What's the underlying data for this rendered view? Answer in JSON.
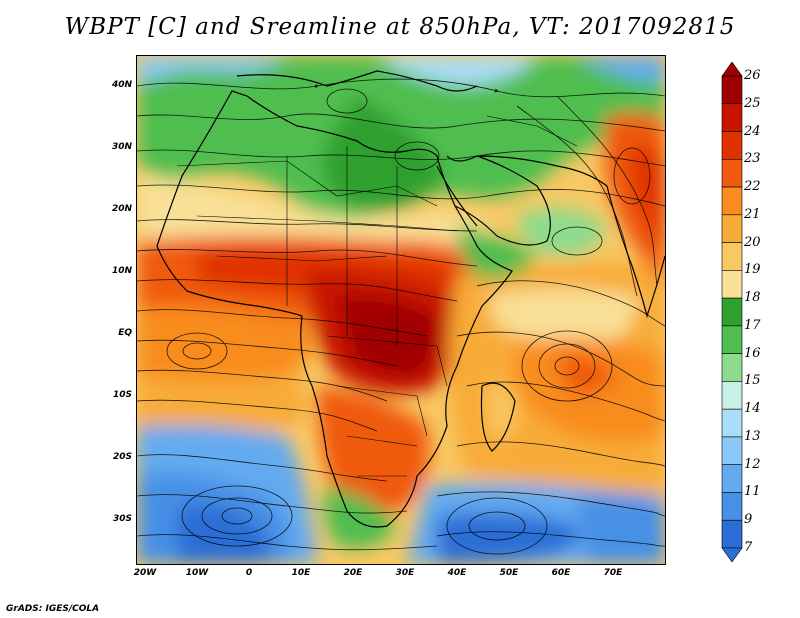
{
  "title": "WBPT [C] and Sreamline at 850hPa, VT: 2017092815",
  "credit": "GrADS: IGES/COLA",
  "lat_labels": [
    "40N",
    "30N",
    "20N",
    "10N",
    "EQ",
    "10S",
    "20S",
    "30S"
  ],
  "lon_labels": [
    "20W",
    "10W",
    "0",
    "10E",
    "20E",
    "30E",
    "40E",
    "50E",
    "60E",
    "70E"
  ],
  "colorbar": {
    "labels": [
      "26",
      "25",
      "24",
      "23",
      "22",
      "21",
      "20",
      "19",
      "18",
      "17",
      "16",
      "15",
      "14",
      "13",
      "12",
      "11",
      "9",
      "7"
    ],
    "colors": [
      "#a00000",
      "#c81400",
      "#e03200",
      "#f05a10",
      "#f88c1e",
      "#f8ac38",
      "#f8c864",
      "#f8e096",
      "#2ea02e",
      "#50be50",
      "#8cdc8c",
      "#c8f0e6",
      "#aaddf8",
      "#8cc8f8",
      "#64aaf0",
      "#4690e6",
      "#2a6ed6"
    ]
  },
  "map": {
    "lon_range": [
      -21,
      80
    ],
    "lat_range": [
      -37,
      45
    ],
    "variable": "WBPT",
    "units": "C",
    "level": "850hPa",
    "valid_time": "2017092815"
  }
}
